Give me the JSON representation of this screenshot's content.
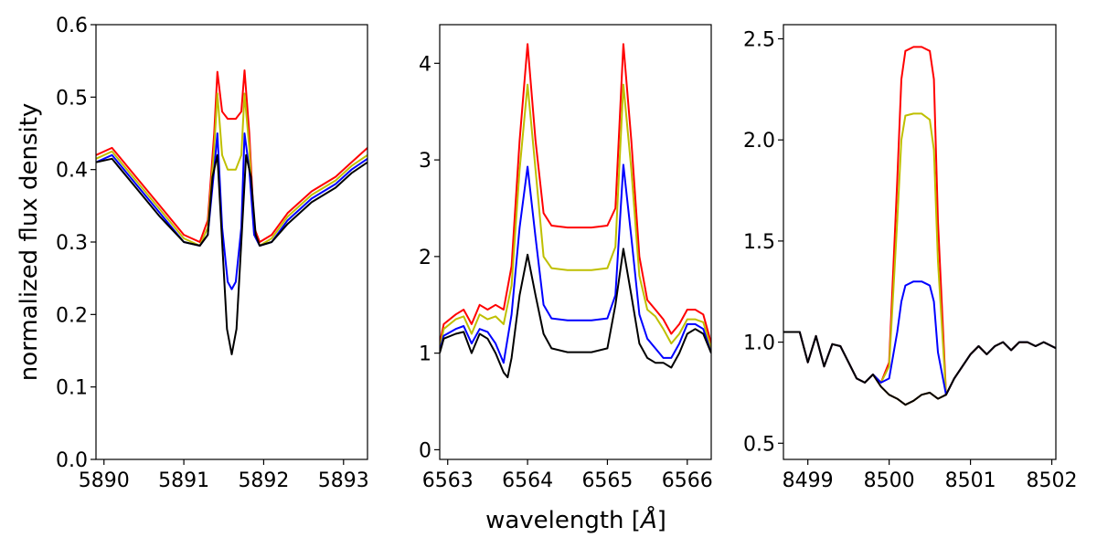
{
  "figure": {
    "ylabel": "normalized flux density",
    "xlabel_text": "wavelength [",
    "xlabel_unit": "Å",
    "xlabel_close": "]"
  },
  "chart_data": [
    {
      "type": "line",
      "panel": "left",
      "xlim": [
        5889.9,
        5893.3
      ],
      "ylim": [
        0.0,
        0.6
      ],
      "xticks": [
        5890,
        5891,
        5892,
        5893
      ],
      "yticks": [
        0.0,
        0.1,
        0.2,
        0.3,
        0.4,
        0.5,
        0.6
      ],
      "ytick_decimals": 1,
      "series": [
        {
          "name": "red",
          "color": "#ff0000",
          "x": [
            5889.9,
            5890.1,
            5890.4,
            5890.7,
            5891.0,
            5891.2,
            5891.3,
            5891.38,
            5891.42,
            5891.48,
            5891.55,
            5891.65,
            5891.72,
            5891.76,
            5891.82,
            5891.88,
            5891.95,
            5892.1,
            5892.3,
            5892.6,
            5892.9,
            5893.1,
            5893.3
          ],
          "y": [
            0.42,
            0.43,
            0.39,
            0.35,
            0.31,
            0.3,
            0.33,
            0.45,
            0.535,
            0.48,
            0.47,
            0.47,
            0.48,
            0.537,
            0.45,
            0.32,
            0.3,
            0.31,
            0.34,
            0.37,
            0.39,
            0.41,
            0.43
          ]
        },
        {
          "name": "yellow",
          "color": "#bfbf00",
          "x": [
            5889.9,
            5890.1,
            5890.4,
            5890.7,
            5891.0,
            5891.2,
            5891.3,
            5891.38,
            5891.42,
            5891.48,
            5891.55,
            5891.65,
            5891.72,
            5891.76,
            5891.82,
            5891.88,
            5891.95,
            5892.1,
            5892.3,
            5892.6,
            5892.9,
            5893.1,
            5893.3
          ],
          "y": [
            0.415,
            0.425,
            0.385,
            0.345,
            0.305,
            0.295,
            0.32,
            0.43,
            0.505,
            0.42,
            0.4,
            0.4,
            0.42,
            0.505,
            0.43,
            0.31,
            0.295,
            0.305,
            0.335,
            0.365,
            0.385,
            0.405,
            0.42
          ]
        },
        {
          "name": "blue",
          "color": "#0000ff",
          "x": [
            5889.9,
            5890.1,
            5890.4,
            5890.7,
            5891.0,
            5891.2,
            5891.3,
            5891.38,
            5891.42,
            5891.48,
            5891.55,
            5891.6,
            5891.65,
            5891.72,
            5891.76,
            5891.82,
            5891.88,
            5891.95,
            5892.1,
            5892.3,
            5892.6,
            5892.9,
            5893.1,
            5893.3
          ],
          "y": [
            0.41,
            0.42,
            0.38,
            0.34,
            0.3,
            0.295,
            0.31,
            0.4,
            0.45,
            0.32,
            0.245,
            0.235,
            0.245,
            0.32,
            0.45,
            0.4,
            0.31,
            0.295,
            0.3,
            0.33,
            0.36,
            0.38,
            0.4,
            0.415
          ]
        },
        {
          "name": "black",
          "color": "#000000",
          "x": [
            5889.9,
            5890.1,
            5890.4,
            5890.7,
            5891.0,
            5891.2,
            5891.3,
            5891.36,
            5891.42,
            5891.48,
            5891.54,
            5891.6,
            5891.66,
            5891.72,
            5891.78,
            5891.84,
            5891.9,
            5891.95,
            5892.1,
            5892.3,
            5892.6,
            5892.9,
            5893.1,
            5893.3
          ],
          "y": [
            0.41,
            0.415,
            0.375,
            0.335,
            0.3,
            0.295,
            0.31,
            0.39,
            0.42,
            0.3,
            0.18,
            0.145,
            0.18,
            0.3,
            0.42,
            0.39,
            0.31,
            0.295,
            0.3,
            0.325,
            0.355,
            0.375,
            0.395,
            0.41
          ]
        }
      ]
    },
    {
      "type": "line",
      "panel": "middle",
      "xlim": [
        6562.9,
        6566.3
      ],
      "ylim": [
        -0.1,
        4.4
      ],
      "xticks": [
        6563,
        6564,
        6565,
        6566
      ],
      "yticks": [
        0,
        1,
        2,
        3,
        4
      ],
      "ytick_decimals": 0,
      "series": [
        {
          "name": "red",
          "color": "#ff0000",
          "x": [
            6562.9,
            6562.95,
            6563.1,
            6563.2,
            6563.3,
            6563.4,
            6563.5,
            6563.6,
            6563.7,
            6563.8,
            6563.9,
            6564.0,
            6564.1,
            6564.2,
            6564.3,
            6564.5,
            6564.8,
            6565.0,
            6565.1,
            6565.2,
            6565.3,
            6565.4,
            6565.5,
            6565.6,
            6565.7,
            6565.8,
            6565.9,
            6566.0,
            6566.1,
            6566.2,
            6566.3
          ],
          "y": [
            1.1,
            1.3,
            1.4,
            1.45,
            1.3,
            1.5,
            1.45,
            1.5,
            1.45,
            1.9,
            3.2,
            4.2,
            3.2,
            2.45,
            2.32,
            2.3,
            2.3,
            2.32,
            2.5,
            4.2,
            3.2,
            2.0,
            1.55,
            1.45,
            1.35,
            1.2,
            1.3,
            1.45,
            1.45,
            1.4,
            1.1
          ]
        },
        {
          "name": "yellow",
          "color": "#bfbf00",
          "x": [
            6562.9,
            6562.95,
            6563.1,
            6563.2,
            6563.3,
            6563.4,
            6563.5,
            6563.6,
            6563.7,
            6563.8,
            6563.9,
            6564.0,
            6564.1,
            6564.2,
            6564.3,
            6564.5,
            6564.8,
            6565.0,
            6565.1,
            6565.2,
            6565.3,
            6565.4,
            6565.5,
            6565.6,
            6565.7,
            6565.8,
            6565.9,
            6566.0,
            6566.1,
            6566.2,
            6566.3
          ],
          "y": [
            1.05,
            1.25,
            1.35,
            1.38,
            1.2,
            1.4,
            1.35,
            1.38,
            1.3,
            1.7,
            2.9,
            3.78,
            2.9,
            2.0,
            1.88,
            1.86,
            1.86,
            1.88,
            2.1,
            3.78,
            2.9,
            1.8,
            1.45,
            1.38,
            1.25,
            1.1,
            1.2,
            1.35,
            1.35,
            1.32,
            1.05
          ]
        },
        {
          "name": "blue",
          "color": "#0000ff",
          "x": [
            6562.9,
            6562.95,
            6563.1,
            6563.2,
            6563.3,
            6563.4,
            6563.5,
            6563.6,
            6563.7,
            6563.8,
            6563.9,
            6564.0,
            6564.1,
            6564.2,
            6564.3,
            6564.5,
            6564.8,
            6565.0,
            6565.1,
            6565.2,
            6565.3,
            6565.4,
            6565.5,
            6565.6,
            6565.7,
            6565.8,
            6565.9,
            6566.0,
            6566.1,
            6566.2,
            6566.3
          ],
          "y": [
            1.02,
            1.18,
            1.25,
            1.28,
            1.1,
            1.25,
            1.22,
            1.1,
            0.9,
            1.4,
            2.3,
            2.93,
            2.2,
            1.5,
            1.36,
            1.34,
            1.34,
            1.36,
            1.6,
            2.95,
            2.2,
            1.4,
            1.15,
            1.05,
            0.95,
            0.95,
            1.1,
            1.3,
            1.3,
            1.25,
            1.0
          ]
        },
        {
          "name": "black",
          "color": "#000000",
          "x": [
            6562.9,
            6562.95,
            6563.1,
            6563.2,
            6563.3,
            6563.4,
            6563.5,
            6563.6,
            6563.7,
            6563.75,
            6563.8,
            6563.9,
            6564.0,
            6564.1,
            6564.2,
            6564.3,
            6564.5,
            6564.8,
            6565.0,
            6565.1,
            6565.2,
            6565.3,
            6565.4,
            6565.5,
            6565.6,
            6565.7,
            6565.8,
            6565.9,
            6566.0,
            6566.1,
            6566.2,
            6566.3
          ],
          "y": [
            1.0,
            1.15,
            1.2,
            1.22,
            1.0,
            1.2,
            1.15,
            1.0,
            0.8,
            0.75,
            0.95,
            1.6,
            2.02,
            1.6,
            1.2,
            1.05,
            1.01,
            1.01,
            1.05,
            1.5,
            2.08,
            1.6,
            1.1,
            0.95,
            0.9,
            0.9,
            0.85,
            1.0,
            1.2,
            1.25,
            1.2,
            1.0
          ]
        }
      ]
    },
    {
      "type": "line",
      "panel": "right",
      "xlim": [
        8498.7,
        8502.05
      ],
      "ylim": [
        0.42,
        2.57
      ],
      "xticks": [
        8499,
        8500,
        8501,
        8502
      ],
      "yticks": [
        0.5,
        1.0,
        1.5,
        2.0,
        2.5
      ],
      "ytick_decimals": 1,
      "series": [
        {
          "name": "orange",
          "color": "#ff8c00",
          "x": [
            8498.7,
            8498.9,
            8499.0,
            8499.1,
            8499.2,
            8499.3,
            8499.4,
            8499.5,
            8499.6,
            8499.7,
            8499.8,
            8499.9,
            8500.0,
            8500.1,
            8500.2,
            8500.3,
            8500.4,
            8500.5,
            8500.6,
            8500.7,
            8500.8,
            8500.9,
            8501.0,
            8501.1,
            8501.2,
            8501.3,
            8501.4,
            8501.5,
            8501.6,
            8501.7,
            8501.8,
            8501.9,
            8502.05
          ],
          "y": [
            1.05,
            1.05,
            0.9,
            1.03,
            0.88,
            0.99,
            0.98,
            0.9,
            0.82,
            0.8,
            0.84,
            0.78,
            0.74,
            0.72,
            0.69,
            0.71,
            0.74,
            0.75,
            0.72,
            0.74,
            0.82,
            0.88,
            0.94,
            0.98,
            0.94,
            0.98,
            1.0,
            0.96,
            1.0,
            1.0,
            0.98,
            1.0,
            0.97
          ]
        },
        {
          "name": "red",
          "color": "#ff0000",
          "x": [
            8498.7,
            8498.9,
            8499.0,
            8499.1,
            8499.2,
            8499.3,
            8499.4,
            8499.5,
            8499.6,
            8499.7,
            8499.8,
            8499.9,
            8500.0,
            8500.1,
            8500.15,
            8500.2,
            8500.3,
            8500.4,
            8500.5,
            8500.55,
            8500.6,
            8500.7,
            8500.8,
            8500.9,
            8501.0,
            8501.1,
            8501.2,
            8501.3,
            8501.4,
            8501.5,
            8501.6,
            8501.7,
            8501.8,
            8501.9,
            8502.05
          ],
          "y": [
            1.05,
            1.05,
            0.9,
            1.03,
            0.88,
            0.99,
            0.98,
            0.9,
            0.82,
            0.8,
            0.84,
            0.8,
            0.9,
            1.8,
            2.3,
            2.44,
            2.46,
            2.46,
            2.44,
            2.3,
            1.6,
            0.74,
            0.82,
            0.88,
            0.94,
            0.98,
            0.94,
            0.98,
            1.0,
            0.96,
            1.0,
            1.0,
            0.98,
            1.0,
            0.97
          ]
        },
        {
          "name": "yellow",
          "color": "#bfbf00",
          "x": [
            8498.7,
            8498.9,
            8499.0,
            8499.1,
            8499.2,
            8499.3,
            8499.4,
            8499.5,
            8499.6,
            8499.7,
            8499.8,
            8499.9,
            8500.0,
            8500.1,
            8500.15,
            8500.2,
            8500.3,
            8500.4,
            8500.5,
            8500.55,
            8500.6,
            8500.7,
            8500.8,
            8500.9,
            8501.0,
            8501.1,
            8501.2,
            8501.3,
            8501.4,
            8501.5,
            8501.6,
            8501.7,
            8501.8,
            8501.9,
            8502.05
          ],
          "y": [
            1.05,
            1.05,
            0.9,
            1.03,
            0.88,
            0.99,
            0.98,
            0.9,
            0.82,
            0.8,
            0.84,
            0.8,
            0.88,
            1.6,
            2.0,
            2.12,
            2.13,
            2.13,
            2.1,
            1.95,
            1.4,
            0.74,
            0.82,
            0.88,
            0.94,
            0.98,
            0.94,
            0.98,
            1.0,
            0.96,
            1.0,
            1.0,
            0.98,
            1.0,
            0.97
          ]
        },
        {
          "name": "blue",
          "color": "#0000ff",
          "x": [
            8498.7,
            8498.9,
            8499.0,
            8499.1,
            8499.2,
            8499.3,
            8499.4,
            8499.5,
            8499.6,
            8499.7,
            8499.8,
            8499.9,
            8500.0,
            8500.1,
            8500.15,
            8500.2,
            8500.3,
            8500.4,
            8500.5,
            8500.55,
            8500.6,
            8500.7,
            8500.8,
            8500.9,
            8501.0,
            8501.1,
            8501.2,
            8501.3,
            8501.4,
            8501.5,
            8501.6,
            8501.7,
            8501.8,
            8501.9,
            8502.05
          ],
          "y": [
            1.05,
            1.05,
            0.9,
            1.03,
            0.88,
            0.99,
            0.98,
            0.9,
            0.82,
            0.8,
            0.84,
            0.8,
            0.82,
            1.05,
            1.2,
            1.28,
            1.3,
            1.3,
            1.28,
            1.2,
            0.95,
            0.74,
            0.82,
            0.88,
            0.94,
            0.98,
            0.94,
            0.98,
            1.0,
            0.96,
            1.0,
            1.0,
            0.98,
            1.0,
            0.97
          ]
        },
        {
          "name": "black",
          "color": "#000000",
          "x": [
            8498.7,
            8498.9,
            8499.0,
            8499.1,
            8499.2,
            8499.3,
            8499.4,
            8499.5,
            8499.6,
            8499.7,
            8499.8,
            8499.9,
            8500.0,
            8500.1,
            8500.2,
            8500.3,
            8500.4,
            8500.5,
            8500.6,
            8500.7,
            8500.8,
            8500.9,
            8501.0,
            8501.1,
            8501.2,
            8501.3,
            8501.4,
            8501.5,
            8501.6,
            8501.7,
            8501.8,
            8501.9,
            8502.05
          ],
          "y": [
            1.05,
            1.05,
            0.9,
            1.03,
            0.88,
            0.99,
            0.98,
            0.9,
            0.82,
            0.8,
            0.84,
            0.78,
            0.74,
            0.72,
            0.69,
            0.71,
            0.74,
            0.75,
            0.72,
            0.74,
            0.82,
            0.88,
            0.94,
            0.98,
            0.94,
            0.98,
            1.0,
            0.96,
            1.0,
            1.0,
            0.98,
            1.0,
            0.97
          ]
        }
      ]
    }
  ]
}
